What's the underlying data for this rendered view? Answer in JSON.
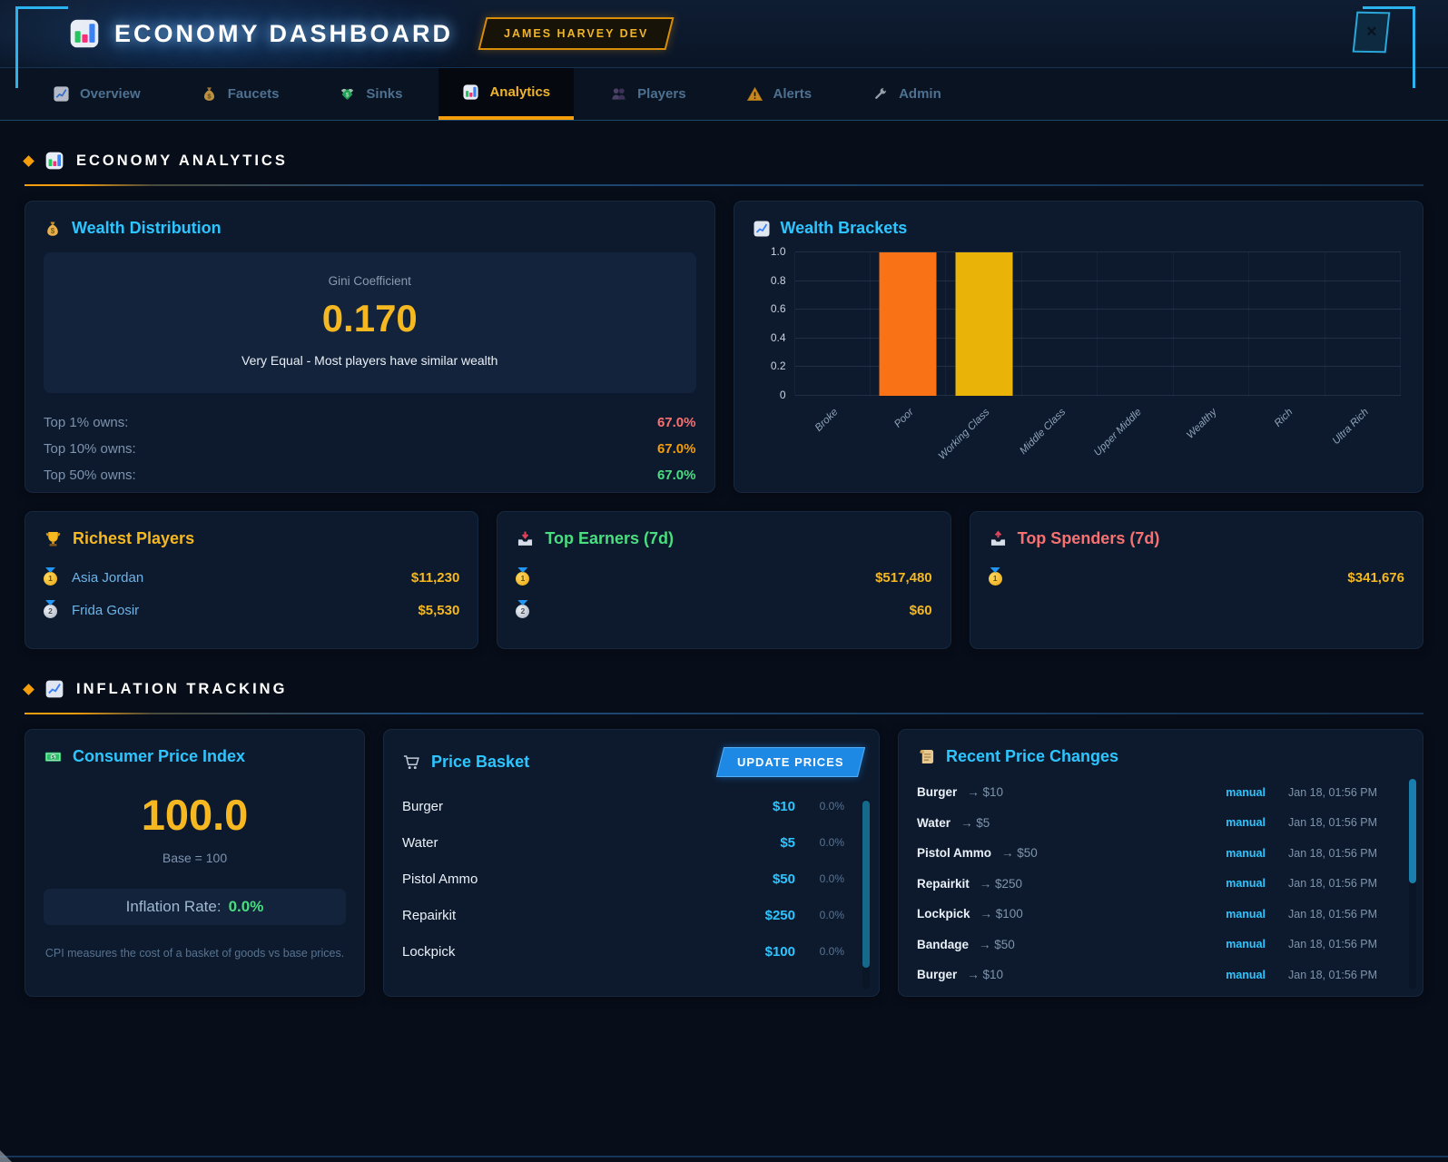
{
  "header": {
    "title": "ECONOMY DASHBOARD",
    "badge": "JAMES HARVEY DEV",
    "close": "×"
  },
  "nav": {
    "tabs": [
      {
        "label": "Overview"
      },
      {
        "label": "Faucets"
      },
      {
        "label": "Sinks"
      },
      {
        "label": "Analytics"
      },
      {
        "label": "Players"
      },
      {
        "label": "Alerts"
      },
      {
        "label": "Admin"
      }
    ]
  },
  "sections": {
    "analytics": "ECONOMY ANALYTICS",
    "inflation": "INFLATION TRACKING"
  },
  "wealth_distribution": {
    "title": "Wealth Distribution",
    "gini_label": "Gini Coefficient",
    "gini_value": "0.170",
    "gini_desc": "Very Equal - Most players have similar wealth",
    "rows": [
      {
        "label": "Top 1% owns:",
        "value": "67.0%",
        "cls": "red"
      },
      {
        "label": "Top 10% owns:",
        "value": "67.0%",
        "cls": "orange"
      },
      {
        "label": "Top 50% owns:",
        "value": "67.0%",
        "cls": "green"
      }
    ]
  },
  "chart_data": {
    "type": "bar",
    "title": "Wealth Brackets",
    "categories": [
      "Broke",
      "Poor",
      "Working Class",
      "Middle Class",
      "Upper Middle",
      "Wealthy",
      "Rich",
      "Ultra Rich"
    ],
    "values": [
      0,
      1.0,
      1.0,
      0,
      0,
      0,
      0,
      0
    ],
    "colors": [
      null,
      "#f97316",
      "#eab308",
      null,
      null,
      null,
      null,
      null
    ],
    "xlabel": "",
    "ylabel": "",
    "ylim": [
      0,
      1.0
    ],
    "yticks": [
      0,
      0.2,
      0.4,
      0.6,
      0.8,
      1.0
    ],
    "grid": true,
    "legend": false
  },
  "leaderboards": {
    "richest": {
      "title": "Richest Players",
      "rows": [
        {
          "rank": "1",
          "medal": "gold",
          "name": "Asia Jordan",
          "value": "$11,230"
        },
        {
          "rank": "2",
          "medal": "silver",
          "name": "Frida Gosir",
          "value": "$5,530"
        }
      ]
    },
    "earners": {
      "title": "Top Earners (7d)",
      "rows": [
        {
          "rank": "1",
          "medal": "gold",
          "name": "",
          "value": "$517,480"
        },
        {
          "rank": "2",
          "medal": "silver",
          "name": "",
          "value": "$60"
        }
      ]
    },
    "spenders": {
      "title": "Top Spenders (7d)",
      "rows": [
        {
          "rank": "1",
          "medal": "gold",
          "name": "",
          "value": "$341,676"
        }
      ]
    }
  },
  "cpi": {
    "title": "Consumer Price Index",
    "value": "100.0",
    "base_label": "Base = 100",
    "inflation_label": "Inflation Rate:",
    "inflation_value": "0.0%",
    "footnote": "CPI measures the cost of a basket of goods vs base prices."
  },
  "price_basket": {
    "title": "Price Basket",
    "button_label": "UPDATE PRICES",
    "items": [
      {
        "name": "Burger",
        "price": "$10",
        "change": "0.0%"
      },
      {
        "name": "Water",
        "price": "$5",
        "change": "0.0%"
      },
      {
        "name": "Pistol Ammo",
        "price": "$50",
        "change": "0.0%"
      },
      {
        "name": "Repairkit",
        "price": "$250",
        "change": "0.0%"
      },
      {
        "name": "Lockpick",
        "price": "$100",
        "change": "0.0%"
      }
    ]
  },
  "price_changes": {
    "title": "Recent Price Changes",
    "rows": [
      {
        "name": "Burger",
        "price": "→ $10",
        "source": "manual",
        "time": "Jan 18, 01:56 PM"
      },
      {
        "name": "Water",
        "price": "→ $5",
        "source": "manual",
        "time": "Jan 18, 01:56 PM"
      },
      {
        "name": "Pistol Ammo",
        "price": "→ $50",
        "source": "manual",
        "time": "Jan 18, 01:56 PM"
      },
      {
        "name": "Repairkit",
        "price": "→ $250",
        "source": "manual",
        "time": "Jan 18, 01:56 PM"
      },
      {
        "name": "Lockpick",
        "price": "→ $100",
        "source": "manual",
        "time": "Jan 18, 01:56 PM"
      },
      {
        "name": "Bandage",
        "price": "→ $50",
        "source": "manual",
        "time": "Jan 18, 01:56 PM"
      },
      {
        "name": "Burger",
        "price": "→ $10",
        "source": "manual",
        "time": "Jan 18, 01:56 PM"
      }
    ]
  },
  "colors": {
    "accent_orange": "#f59e0b",
    "accent_cyan": "#2ec5ff",
    "accent_gold": "#f5b821",
    "bar_orange": "#f97316",
    "bar_yellow": "#eab308",
    "button_blue": "#1e88e5"
  }
}
